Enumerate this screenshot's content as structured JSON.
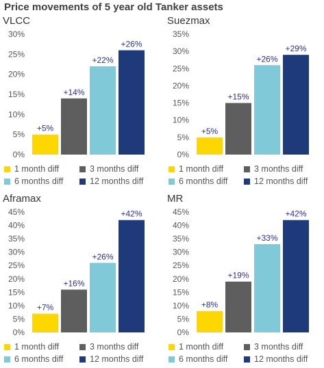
{
  "title": "Price movements of 5 year old Tanker assets",
  "colors": {
    "s1": "#ffd700",
    "s2": "#5e5e5e",
    "s3": "#7fc9d8",
    "s4": "#1f3a7a"
  },
  "chart_data": [
    {
      "type": "bar",
      "title": "VLCC",
      "categories": [
        "1 month diff",
        "3 months diff",
        "6 months diff",
        "12 months diff"
      ],
      "values": [
        5,
        14,
        22,
        26
      ],
      "data_labels": [
        "+5%",
        "+14%",
        "+22%",
        "+26%"
      ],
      "ylim": [
        0,
        30
      ],
      "yticks": [
        "0%",
        "5%",
        "10%",
        "15%",
        "20%",
        "25%",
        "30%"
      ],
      "legend": [
        "1 month diff",
        "3 months diff",
        "6 months diff",
        "12 months diff"
      ],
      "legend_placement": "bottom",
      "grid": false
    },
    {
      "type": "bar",
      "title": "Suezmax",
      "categories": [
        "1 month diff",
        "3 months diff",
        "6 months diff",
        "12 months diff"
      ],
      "values": [
        5,
        15,
        26,
        29
      ],
      "data_labels": [
        "+5%",
        "+15%",
        "+26%",
        "+29%"
      ],
      "ylim": [
        0,
        35
      ],
      "yticks": [
        "0%",
        "5%",
        "10%",
        "15%",
        "20%",
        "25%",
        "30%",
        "35%"
      ],
      "legend": [
        "1 month diff",
        "3 months diff",
        "6 months diff",
        "12 months diff"
      ],
      "legend_placement": "bottom",
      "grid": false
    },
    {
      "type": "bar",
      "title": "Aframax",
      "categories": [
        "1 month diff",
        "3 months diff",
        "6 months diff",
        "12 months diff"
      ],
      "values": [
        7,
        16,
        26,
        42
      ],
      "data_labels": [
        "+7%",
        "+16%",
        "+26%",
        "+42%"
      ],
      "ylim": [
        0,
        45
      ],
      "yticks": [
        "0%",
        "5%",
        "10%",
        "15%",
        "20%",
        "25%",
        "30%",
        "35%",
        "40%",
        "45%"
      ],
      "legend": [
        "1 month diff",
        "3 months diff",
        "6 months diff",
        "12 months diff"
      ],
      "legend_placement": "bottom",
      "grid": false
    },
    {
      "type": "bar",
      "title": "MR",
      "categories": [
        "1 month diff",
        "3 months diff",
        "6 months diff",
        "12 months diff"
      ],
      "values": [
        8,
        19,
        33,
        42
      ],
      "data_labels": [
        "+8%",
        "+19%",
        "+33%",
        "+42%"
      ],
      "ylim": [
        0,
        45
      ],
      "yticks": [
        "0%",
        "5%",
        "10%",
        "15%",
        "20%",
        "25%",
        "30%",
        "35%",
        "40%",
        "45%"
      ],
      "legend": [
        "1 month diff",
        "3 months diff",
        "6 months diff",
        "12 months diff"
      ],
      "legend_placement": "bottom",
      "grid": false
    }
  ]
}
